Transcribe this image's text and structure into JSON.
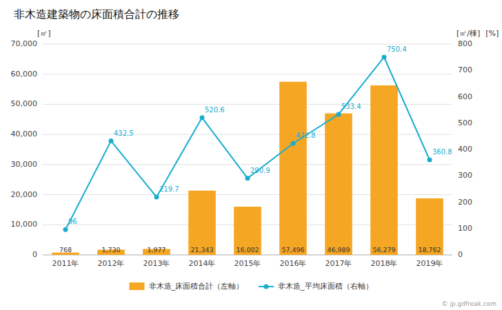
{
  "chart_data": {
    "type": "bar",
    "title": "非木造建築物の床面積合計の推移",
    "categories": [
      "2011年",
      "2012年",
      "2013年",
      "2014年",
      "2015年",
      "2016年",
      "2017年",
      "2018年",
      "2019年"
    ],
    "series": [
      {
        "name": "非木造_床面積合計（左軸）",
        "type": "bar",
        "color": "#F5A623",
        "values": [
          768,
          1730,
          1977,
          21343,
          16002,
          57496,
          46989,
          56279,
          18762
        ],
        "value_labels": [
          "768",
          "1,730",
          "1,977",
          "21,343",
          "16,002",
          "57,496",
          "46,989",
          "56,279",
          "18,762"
        ]
      },
      {
        "name": "非木造_平均床面積（右軸）",
        "type": "line",
        "color": "#1AACCF",
        "axis": "y2",
        "marker": "circle",
        "values": [
          96,
          432.5,
          219.7,
          520.6,
          290.9,
          422.8,
          533.4,
          750.4,
          360.8
        ]
      }
    ],
    "ylabel": "[㎡]",
    "y2label": "[㎡/棟]",
    "annotations": [
      "[%]",
      "© jp.gdfreak.com"
    ],
    "ylim": [
      0,
      70000
    ],
    "yticks": [
      0,
      {
        "value": 10000,
        "label": "10,000"
      },
      {
        "value": 20000,
        "label": "20,000"
      },
      {
        "value": 30000,
        "label": "30,000"
      },
      {
        "value": 40000,
        "label": "40,000"
      },
      {
        "value": 50000,
        "label": "50,000"
      },
      {
        "value": 60000,
        "label": "60,000"
      },
      {
        "value": 70000,
        "label": "70,000"
      }
    ],
    "y2lim": [
      0,
      800
    ],
    "y2ticks": [
      0,
      100,
      200,
      300,
      400,
      500,
      600,
      700,
      800
    ],
    "grid": true,
    "data_labels": true,
    "legend": "bottom"
  }
}
